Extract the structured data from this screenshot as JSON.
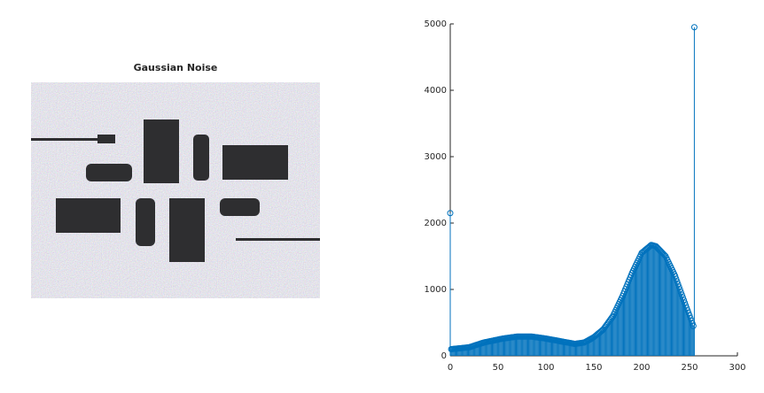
{
  "chart_data": [
    {
      "type": "image",
      "title": "Gaussian Noise"
    },
    {
      "type": "stem",
      "color": "#0072bd",
      "x": [
        0,
        1,
        2,
        3,
        4,
        5,
        6,
        7,
        8,
        9,
        10,
        11,
        12,
        13,
        14,
        15,
        16,
        17,
        18,
        19,
        20,
        21,
        22,
        23,
        24,
        25,
        26,
        27,
        28,
        29,
        30,
        31,
        32,
        33,
        34,
        35,
        36,
        37,
        38,
        39,
        40,
        41,
        42,
        43,
        44,
        45,
        46,
        47,
        48,
        49,
        50,
        51,
        52,
        53,
        54,
        55,
        56,
        57,
        58,
        59,
        60,
        61,
        62,
        63,
        64,
        65,
        66,
        67,
        68,
        69,
        70,
        71,
        72,
        73,
        74,
        75,
        76,
        77,
        78,
        79,
        80,
        81,
        82,
        83,
        84,
        85,
        86,
        87,
        88,
        89,
        90,
        91,
        92,
        93,
        94,
        95,
        96,
        97,
        98,
        99,
        100,
        101,
        102,
        103,
        104,
        105,
        106,
        107,
        108,
        109,
        110,
        111,
        112,
        113,
        114,
        115,
        116,
        117,
        118,
        119,
        120,
        121,
        122,
        123,
        124,
        125,
        126,
        127,
        128,
        129,
        130,
        131,
        132,
        133,
        134,
        135,
        136,
        137,
        138,
        139,
        140,
        141,
        142,
        143,
        144,
        145,
        146,
        147,
        148,
        149,
        150,
        151,
        152,
        153,
        154,
        155,
        156,
        157,
        158,
        159,
        160,
        161,
        162,
        163,
        164,
        165,
        166,
        167,
        168,
        169,
        170,
        171,
        172,
        173,
        174,
        175,
        176,
        177,
        178,
        179,
        180,
        181,
        182,
        183,
        184,
        185,
        186,
        187,
        188,
        189,
        190,
        191,
        192,
        193,
        194,
        195,
        196,
        197,
        198,
        199,
        200,
        201,
        202,
        203,
        204,
        205,
        206,
        207,
        208,
        209,
        210,
        211,
        212,
        213,
        214,
        215,
        216,
        217,
        218,
        219,
        220,
        221,
        222,
        223,
        224,
        225,
        226,
        227,
        228,
        229,
        230,
        231,
        232,
        233,
        234,
        235,
        236,
        237,
        238,
        239,
        240,
        241,
        242,
        243,
        244,
        245,
        246,
        247,
        248,
        249,
        250,
        251,
        252,
        253,
        254,
        255
      ],
      "values": [
        2150,
        100,
        102,
        103,
        105,
        106,
        108,
        109,
        111,
        112,
        114,
        115,
        117,
        118,
        120,
        121,
        123,
        124,
        126,
        127,
        130,
        135,
        139,
        144,
        149,
        153,
        158,
        163,
        167,
        172,
        177,
        181,
        186,
        191,
        195,
        200,
        203,
        206,
        209,
        212,
        215,
        218,
        221,
        224,
        227,
        230,
        233,
        236,
        239,
        242,
        245,
        248,
        251,
        254,
        257,
        260,
        262,
        264,
        266,
        268,
        270,
        272,
        274,
        276,
        278,
        280,
        282,
        284,
        286,
        288,
        290,
        290,
        290,
        290,
        290,
        290,
        290,
        290,
        290,
        290,
        290,
        290,
        290,
        290,
        290,
        290,
        288,
        286,
        284,
        282,
        280,
        278,
        276,
        274,
        272,
        270,
        268,
        266,
        264,
        262,
        260,
        257,
        255,
        252,
        249,
        247,
        244,
        241,
        239,
        236,
        233,
        231,
        228,
        225,
        223,
        220,
        217,
        215,
        212,
        209,
        207,
        204,
        201,
        199,
        196,
        193,
        191,
        188,
        185,
        183,
        180,
        182,
        184,
        186,
        188,
        190,
        192,
        194,
        196,
        198,
        200,
        208,
        216,
        224,
        232,
        240,
        248,
        256,
        264,
        272,
        280,
        292,
        304,
        316,
        328,
        340,
        352,
        364,
        376,
        388,
        400,
        420,
        440,
        460,
        480,
        500,
        520,
        540,
        560,
        580,
        600,
        630,
        660,
        690,
        720,
        750,
        780,
        810,
        840,
        870,
        900,
        935,
        970,
        1005,
        1040,
        1075,
        1110,
        1145,
        1180,
        1215,
        1250,
        1280,
        1310,
        1340,
        1370,
        1400,
        1430,
        1460,
        1490,
        1520,
        1550,
        1562,
        1574,
        1586,
        1598,
        1610,
        1622,
        1634,
        1646,
        1658,
        1670,
        1666,
        1662,
        1658,
        1654,
        1650,
        1635,
        1620,
        1605,
        1590,
        1575,
        1560,
        1545,
        1530,
        1515,
        1500,
        1470,
        1440,
        1410,
        1380,
        1350,
        1320,
        1290,
        1260,
        1230,
        1200,
        1160,
        1120,
        1080,
        1040,
        1000,
        960,
        920,
        880,
        840,
        800,
        761,
        722,
        683,
        644,
        606,
        567,
        528,
        489,
        450,
        4950
      ],
      "xlim": [
        0,
        300
      ],
      "xticks": [
        0,
        50,
        100,
        150,
        200,
        250,
        300
      ],
      "ylim": [
        0,
        5000
      ],
      "yticks": [
        0,
        1000,
        2000,
        3000,
        4000,
        5000
      ]
    }
  ]
}
